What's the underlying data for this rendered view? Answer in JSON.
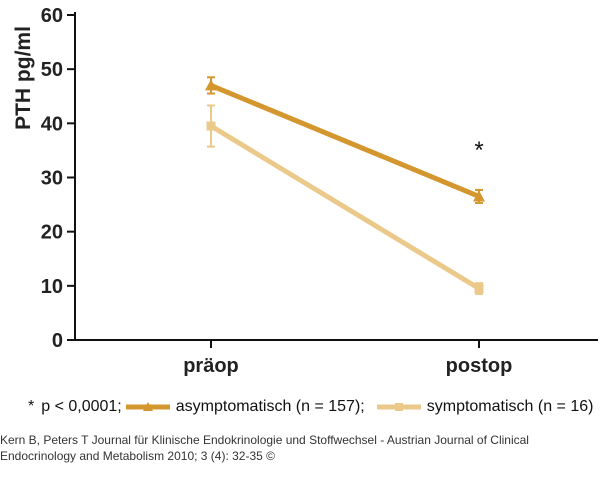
{
  "chart_data": {
    "type": "line",
    "categories": [
      "präop",
      "postop"
    ],
    "ylabel": "PTH pg/ml",
    "xlabel": "",
    "ylim": [
      0,
      60
    ],
    "yticks": [
      0,
      10,
      20,
      30,
      40,
      50,
      60
    ],
    "grid": false,
    "legend_position": "bottom",
    "annotation": "*",
    "series": [
      {
        "name": "asymptomatisch (n = 157)",
        "color": "#D4962E",
        "marker": "triangle",
        "values": [
          47,
          26.5
        ],
        "error": [
          1.5,
          1.2
        ]
      },
      {
        "name": "symptomatisch (n = 16)",
        "color": "#EBC98A",
        "marker": "square",
        "values": [
          39.5,
          9.5
        ],
        "error": [
          3.8,
          1.0
        ]
      }
    ]
  },
  "legend": {
    "note": "p < 0,0001;",
    "star": "*",
    "sep": ";"
  },
  "source": {
    "line1": "Kern B, Peters T Journal für Klinische Endokrinologie und Stoffwechsel - Austrian Journal of Clinical",
    "line2": "Endocrinology and Metabolism 2010; 3 (4): 32-35 ©"
  }
}
